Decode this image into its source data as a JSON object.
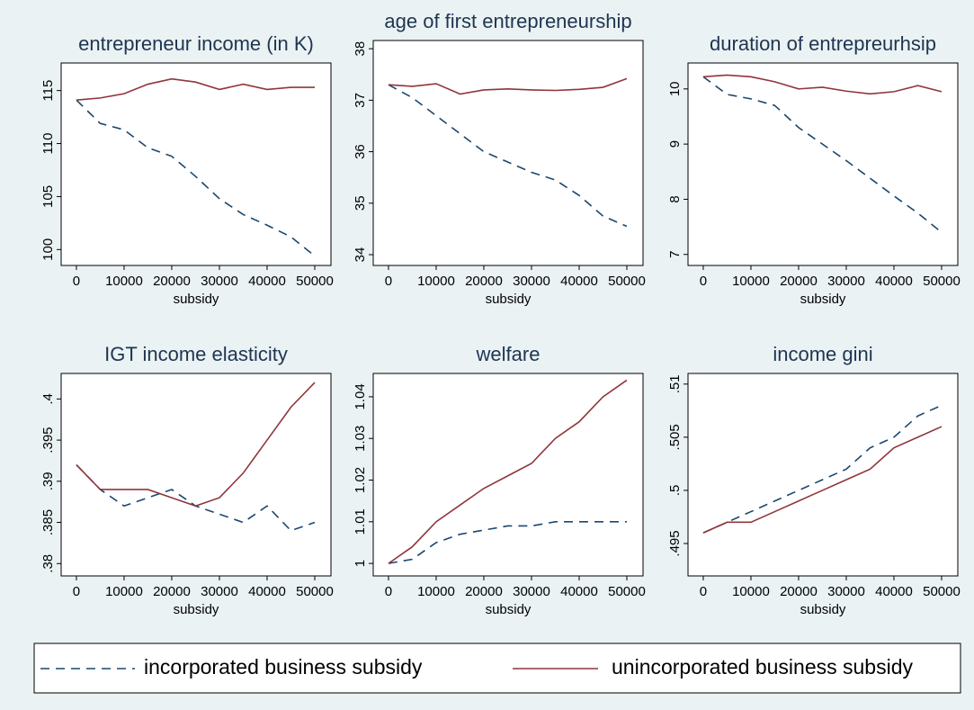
{
  "chart_data": [
    {
      "type": "line",
      "title": "entrepreneur income (in K)",
      "xlabel": "subsidy",
      "x": [
        0,
        5000,
        10000,
        15000,
        20000,
        25000,
        30000,
        35000,
        40000,
        45000,
        50000
      ],
      "series": [
        {
          "name": "incorporated business subsidy",
          "color": "#1a476f",
          "style": "dashed",
          "values": [
            114.1,
            111.9,
            111.3,
            109.6,
            108.8,
            106.9,
            104.8,
            103.3,
            102.3,
            101.2,
            99.4
          ]
        },
        {
          "name": "unincorporated business subsidy",
          "color": "#90353b",
          "style": "solid",
          "values": [
            114.1,
            114.3,
            114.7,
            115.6,
            116.1,
            115.8,
            115.1,
            115.6,
            115.1,
            115.3,
            115.3
          ]
        }
      ],
      "xlim": [
        -3200,
        53400
      ],
      "xticks": [
        0,
        10000,
        20000,
        30000,
        40000,
        50000
      ],
      "ylim": [
        98.5,
        117.6
      ],
      "yticks": [
        100,
        105,
        110,
        115
      ]
    },
    {
      "type": "line",
      "title": "age of first entrepreneurship",
      "xlabel": "subsidy",
      "x": [
        0,
        5000,
        10000,
        15000,
        20000,
        25000,
        30000,
        35000,
        40000,
        45000,
        50000
      ],
      "series": [
        {
          "name": "incorporated business subsidy",
          "color": "#1a476f",
          "style": "dashed",
          "values": [
            37.3,
            37.05,
            36.7,
            36.35,
            36.0,
            35.8,
            35.6,
            35.45,
            35.15,
            34.75,
            34.55
          ]
        },
        {
          "name": "unincorporated business subsidy",
          "color": "#90353b",
          "style": "solid",
          "values": [
            37.3,
            37.27,
            37.32,
            37.12,
            37.2,
            37.22,
            37.2,
            37.19,
            37.21,
            37.25,
            37.42
          ]
        }
      ],
      "xlim": [
        -3200,
        53400
      ],
      "xticks": [
        0,
        10000,
        20000,
        30000,
        40000,
        50000
      ],
      "ylim": [
        33.79,
        38.16
      ],
      "yticks": [
        34,
        35,
        36,
        37,
        38
      ]
    },
    {
      "type": "line",
      "title": "duration of entrepreurhsip",
      "xlabel": "subsidy",
      "x": [
        0,
        5000,
        10000,
        15000,
        20000,
        25000,
        30000,
        35000,
        40000,
        45000,
        50000
      ],
      "series": [
        {
          "name": "incorporated business subsidy",
          "color": "#1a476f",
          "style": "dashed",
          "values": [
            10.22,
            9.9,
            9.82,
            9.7,
            9.3,
            9.0,
            8.7,
            8.38,
            8.06,
            7.75,
            7.4
          ]
        },
        {
          "name": "unincorporated business subsidy",
          "color": "#90353b",
          "style": "solid",
          "values": [
            10.22,
            10.25,
            10.22,
            10.13,
            10.0,
            10.03,
            9.96,
            9.91,
            9.95,
            10.06,
            9.95
          ]
        }
      ],
      "xlim": [
        -3200,
        53400
      ],
      "xticks": [
        0,
        10000,
        20000,
        30000,
        40000,
        50000
      ],
      "ylim": [
        6.8,
        10.47
      ],
      "yticks": [
        7,
        8,
        9,
        10
      ]
    },
    {
      "type": "line",
      "title": "IGT income elasticity",
      "xlabel": "subsidy",
      "x": [
        0,
        5000,
        10000,
        15000,
        20000,
        25000,
        30000,
        35000,
        40000,
        45000,
        50000
      ],
      "series": [
        {
          "name": "incorporated business subsidy",
          "color": "#1a476f",
          "style": "dashed",
          "values": [
            0.392,
            0.389,
            0.387,
            0.388,
            0.389,
            0.387,
            0.386,
            0.385,
            0.387,
            0.384,
            0.385
          ]
        },
        {
          "name": "unincorporated business subsidy",
          "color": "#90353b",
          "style": "solid",
          "values": [
            0.392,
            0.389,
            0.389,
            0.389,
            0.388,
            0.387,
            0.388,
            0.391,
            0.395,
            0.399,
            0.402
          ]
        }
      ],
      "xlim": [
        -3200,
        53400
      ],
      "xticks": [
        0,
        10000,
        20000,
        30000,
        40000,
        50000
      ],
      "ylim": [
        0.3785,
        0.4031
      ],
      "yticks": [
        {
          "value": 0.38,
          "label": ".38"
        },
        {
          "value": 0.385,
          "label": ".385"
        },
        {
          "value": 0.39,
          "label": ".39"
        },
        {
          "value": 0.395,
          "label": ".395"
        },
        {
          "value": 0.4,
          "label": ".4"
        }
      ]
    },
    {
      "type": "line",
      "title": "welfare",
      "xlabel": "subsidy",
      "x": [
        0,
        5000,
        10000,
        15000,
        20000,
        25000,
        30000,
        35000,
        40000,
        45000,
        50000
      ],
      "series": [
        {
          "name": "incorporated business subsidy",
          "color": "#1a476f",
          "style": "dashed",
          "values": [
            1,
            1.001,
            1.005,
            1.007,
            1.008,
            1.009,
            1.009,
            1.01,
            1.01,
            1.01,
            1.01
          ]
        },
        {
          "name": "unincorporated business subsidy",
          "color": "#90353b",
          "style": "solid",
          "values": [
            1,
            1.004,
            1.01,
            1.014,
            1.018,
            1.021,
            1.024,
            1.03,
            1.034,
            1.04,
            1.044
          ]
        }
      ],
      "xlim": [
        -3200,
        53400
      ],
      "xticks": [
        0,
        10000,
        20000,
        30000,
        40000,
        50000
      ],
      "ylim": [
        0.997,
        1.0456
      ],
      "yticks": [
        1,
        1.01,
        1.02,
        1.03,
        1.04
      ]
    },
    {
      "type": "line",
      "title": "income gini",
      "xlabel": "subsidy",
      "x": [
        0,
        5000,
        10000,
        15000,
        20000,
        25000,
        30000,
        35000,
        40000,
        45000,
        50000
      ],
      "series": [
        {
          "name": "incorporated business subsidy",
          "color": "#1a476f",
          "style": "dashed",
          "values": [
            0.496,
            0.497,
            0.498,
            0.499,
            0.5,
            0.501,
            0.502,
            0.504,
            0.505,
            0.507,
            0.508
          ]
        },
        {
          "name": "unincorporated business subsidy",
          "color": "#90353b",
          "style": "solid",
          "values": [
            0.496,
            0.497,
            0.497,
            0.498,
            0.499,
            0.5,
            0.501,
            0.502,
            0.504,
            0.505,
            0.506
          ]
        }
      ],
      "xlim": [
        -3200,
        53400
      ],
      "xticks": [
        0,
        10000,
        20000,
        30000,
        40000,
        50000
      ],
      "ylim": [
        0.49195,
        0.511
      ],
      "yticks": [
        {
          "value": 0.495,
          "label": ".495"
        },
        {
          "value": 0.5,
          "label": ".5"
        },
        {
          "value": 0.505,
          "label": ".505"
        },
        {
          "value": 0.51,
          "label": ".51"
        }
      ]
    }
  ]
}
